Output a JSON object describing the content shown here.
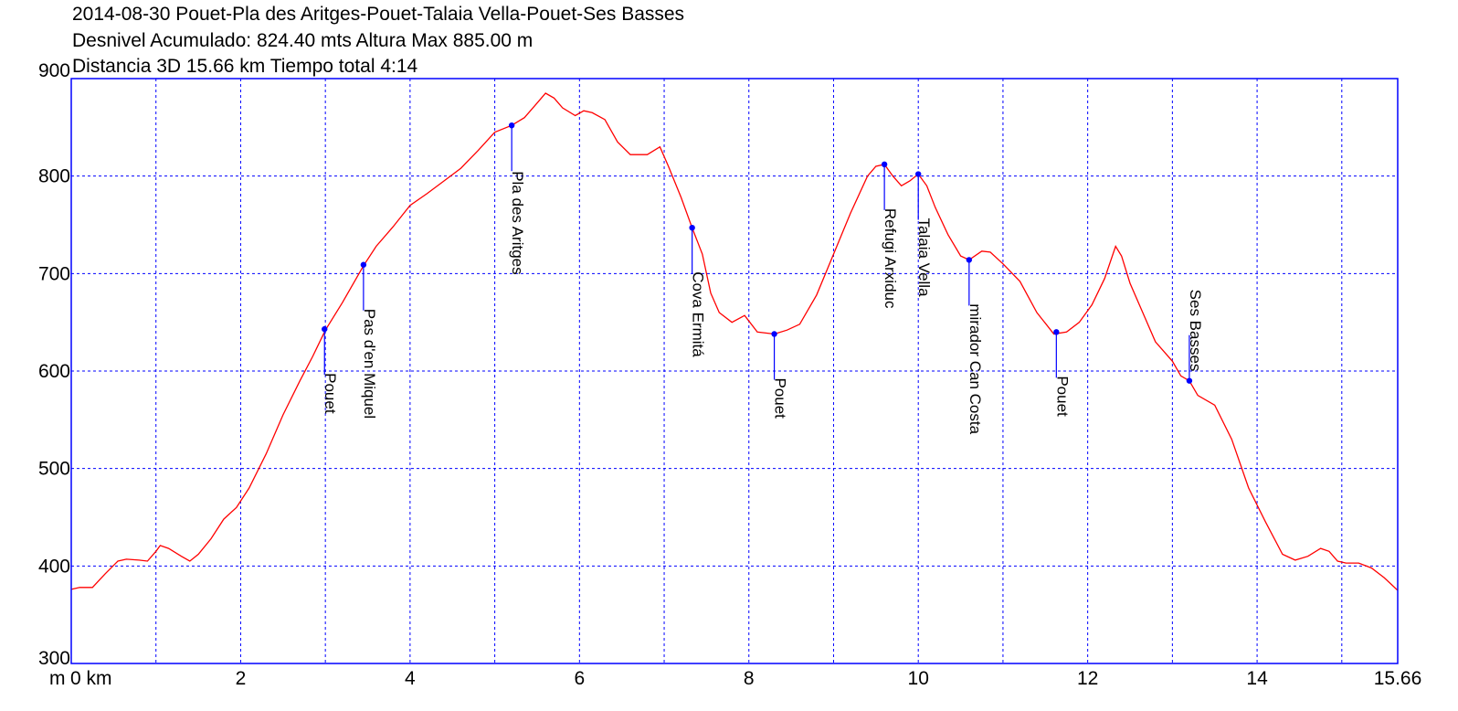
{
  "header": {
    "line1": "2014-08-30 Pouet-Pla des Aritges-Pouet-Talaia Vella-Pouet-Ses Basses",
    "line2": "Desnivel Acumulado: 824.40 mts  Altura Max 885.00 m",
    "line3": "Distancia 3D 15.66 km  Tiempo total 4:14"
  },
  "chart_data": {
    "type": "line",
    "title": "2014-08-30 Pouet-Pla des Aritges-Pouet-Talaia Vella-Pouet-Ses Basses",
    "xlabel": "km",
    "ylabel": "m",
    "xlim": [
      0,
      15.66
    ],
    "ylim": [
      300,
      900
    ],
    "grid": true,
    "x_tick_labels": [
      "0 km",
      "2",
      "4",
      "6",
      "8",
      "10",
      "12",
      "14",
      "15.66"
    ],
    "x_ticks": [
      0,
      2,
      4,
      6,
      8,
      10,
      12,
      14,
      15.66
    ],
    "y_ticks": [
      300,
      400,
      500,
      600,
      700,
      800,
      900
    ],
    "y_unit_label": "m",
    "colors": {
      "line": "#ff0000",
      "grid": "#0000ff",
      "waypoint": "#0000ff",
      "frame": "#0000ff"
    },
    "series": [
      {
        "x": [
          0,
          0.1,
          0.25,
          0.4,
          0.55,
          0.65,
          0.8,
          0.9,
          1.0,
          1.05,
          1.15,
          1.3,
          1.4,
          1.5,
          1.65,
          1.8,
          1.95,
          2.1,
          2.3,
          2.5,
          2.7,
          2.85,
          3.0,
          3.2,
          3.45,
          3.6,
          3.8,
          4.0,
          4.2,
          4.4,
          4.6,
          4.8,
          5.0,
          5.2,
          5.35,
          5.5,
          5.55,
          5.6,
          5.7,
          5.8,
          5.95,
          6.05,
          6.15,
          6.3,
          6.45,
          6.6,
          6.8,
          6.95,
          7.05,
          7.2,
          7.33,
          7.45,
          7.55,
          7.65,
          7.8,
          7.95,
          8.1,
          8.3,
          8.45,
          8.6,
          8.8,
          9.0,
          9.2,
          9.4,
          9.5,
          9.6,
          9.7,
          9.8,
          9.9,
          10.0,
          10.1,
          10.2,
          10.35,
          10.5,
          10.6,
          10.75,
          10.85,
          11.0,
          11.2,
          11.4,
          11.6,
          11.75,
          11.9,
          12.05,
          12.2,
          12.33,
          12.4,
          12.5,
          12.65,
          12.8,
          13.0,
          13.1,
          13.2,
          13.3,
          13.5,
          13.7,
          13.9,
          14.1,
          14.3,
          14.45,
          14.6,
          14.75,
          14.85,
          14.95,
          15.05,
          15.2,
          15.35,
          15.5,
          15.66
        ],
        "y": [
          376,
          378,
          378,
          392,
          405,
          407,
          406,
          405,
          415,
          421,
          418,
          410,
          405,
          412,
          428,
          448,
          460,
          480,
          515,
          555,
          590,
          615,
          642,
          670,
          708,
          728,
          748,
          770,
          782,
          795,
          808,
          826,
          845,
          852,
          860,
          875,
          880,
          885,
          880,
          870,
          862,
          867,
          865,
          858,
          835,
          822,
          822,
          830,
          810,
          778,
          747,
          720,
          680,
          660,
          650,
          657,
          640,
          638,
          642,
          648,
          678,
          720,
          762,
          800,
          810,
          812,
          800,
          790,
          795,
          802,
          790,
          768,
          740,
          718,
          714,
          723,
          722,
          710,
          692,
          660,
          638,
          640,
          650,
          668,
          695,
          728,
          718,
          690,
          660,
          630,
          610,
          595,
          590,
          575,
          565,
          530,
          480,
          445,
          412,
          406,
          410,
          418,
          415,
          405,
          403,
          403,
          398,
          388,
          375
        ]
      }
    ],
    "waypoints": [
      {
        "name": "Pouet",
        "x": 2.99,
        "y": 643
      },
      {
        "name": "Pas d'en Miquel",
        "x": 3.45,
        "y": 709
      },
      {
        "name": "Pla des Aritges",
        "x": 5.2,
        "y": 852
      },
      {
        "name": "Cova Ermitá",
        "x": 7.33,
        "y": 747
      },
      {
        "name": "Pouet",
        "x": 8.3,
        "y": 638
      },
      {
        "name": "Refugi Arxiduc",
        "x": 9.6,
        "y": 812
      },
      {
        "name": "Talaia Vella",
        "x": 10.0,
        "y": 802
      },
      {
        "name": "mirador Can Costa",
        "x": 10.6,
        "y": 714
      },
      {
        "name": "Pouet",
        "x": 11.63,
        "y": 640
      },
      {
        "name": "Ses Basses",
        "x": 13.2,
        "y": 590
      }
    ]
  }
}
